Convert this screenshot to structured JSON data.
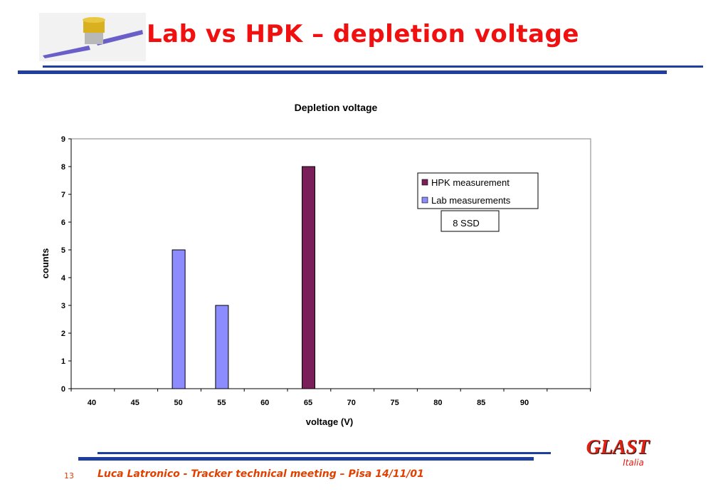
{
  "slide": {
    "title": "Lab vs HPK – depletion voltage",
    "page_number": "13",
    "footer": "Luca Latronico - Tracker technical meeting – Pisa 14/11/01",
    "brand": "GLAST",
    "brand_sub": "Italia",
    "accent_color": "#1f3f9f",
    "title_color": "#f01010"
  },
  "chart_data": {
    "type": "bar",
    "title": "Depletion voltage",
    "xlabel": "voltage (V)",
    "ylabel": "counts",
    "categories": [
      "40",
      "45",
      "50",
      "55",
      "60",
      "65",
      "70",
      "75",
      "80",
      "85",
      "90"
    ],
    "ylim": [
      0,
      9
    ],
    "yticks": [
      "0",
      "1",
      "2",
      "3",
      "4",
      "5",
      "6",
      "7",
      "8",
      "9"
    ],
    "series": [
      {
        "name": "HPK measurement",
        "color": "#7b1f5a",
        "values": [
          0,
          0,
          0,
          0,
          0,
          8,
          0,
          0,
          0,
          0,
          0
        ]
      },
      {
        "name": "Lab measurements",
        "color": "#8c8cff",
        "values": [
          0,
          0,
          5,
          3,
          0,
          0,
          0,
          0,
          0,
          0,
          0
        ]
      }
    ],
    "legend_position": "top-right",
    "annotation": "8 SSD"
  }
}
